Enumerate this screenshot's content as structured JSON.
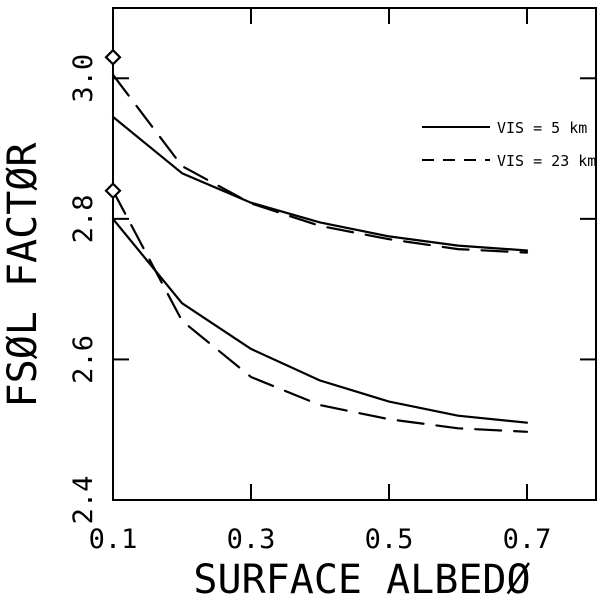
{
  "chart_data": {
    "type": "line",
    "title": "",
    "xlabel": "SURFACE ALBEDØ",
    "ylabel": "FSØL FACTØR",
    "xlim": [
      0.1,
      0.8
    ],
    "ylim": [
      2.4,
      3.1
    ],
    "x_ticks": [
      0.1,
      0.3,
      0.5,
      0.7
    ],
    "x_tick_labels": [
      "0.1",
      "0.3",
      "0.5",
      "0.7"
    ],
    "y_ticks": [
      2.4,
      2.6,
      2.8,
      3.0
    ],
    "y_tick_labels": [
      "2.4",
      "2.6",
      "2.8",
      "3.0"
    ],
    "legend_position": "upper-right",
    "legend": [
      {
        "label": "VIS =  5 km",
        "style": "solid"
      },
      {
        "label": "VIS = 23 km",
        "style": "dashed"
      }
    ],
    "series": [
      {
        "style": "solid",
        "x": [
          0.1,
          0.2,
          0.3,
          0.4,
          0.5,
          0.6,
          0.7
        ],
        "values": [
          2.945,
          2.865,
          2.823,
          2.795,
          2.775,
          2.762,
          2.755
        ]
      },
      {
        "style": "dashed",
        "x": [
          0.1,
          0.2,
          0.3,
          0.4,
          0.5,
          0.6,
          0.7
        ],
        "values": [
          3.005,
          2.875,
          2.822,
          2.79,
          2.771,
          2.757,
          2.752
        ]
      },
      {
        "style": "solid",
        "x": [
          0.1,
          0.2,
          0.3,
          0.4,
          0.5,
          0.6,
          0.7
        ],
        "values": [
          2.8,
          2.68,
          2.615,
          2.57,
          2.54,
          2.52,
          2.51
        ]
      },
      {
        "style": "dashed",
        "x": [
          0.1,
          0.2,
          0.3,
          0.4,
          0.5,
          0.6,
          0.7
        ],
        "values": [
          2.84,
          2.655,
          2.575,
          2.535,
          2.515,
          2.502,
          2.497
        ]
      }
    ],
    "markers": [
      {
        "shape": "diamond",
        "x": 0.1,
        "y": 3.03
      },
      {
        "shape": "diamond",
        "x": 0.1,
        "y": 2.84
      }
    ]
  }
}
